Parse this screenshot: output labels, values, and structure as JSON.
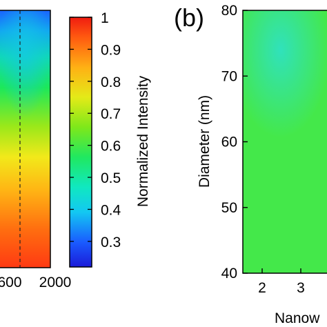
{
  "chart_data": [
    {
      "type": "heatmap",
      "panel": "",
      "xlabel": "",
      "ylabel": "",
      "x_tick_labels": [
        "600",
        "2000"
      ],
      "colormap": "jet",
      "marker_line": "dashed vertical",
      "notes": "left panel partially cropped"
    },
    {
      "type": "colorbar",
      "label": "Normalized Intensity",
      "range": [
        0.22,
        1.0
      ],
      "ticks": [
        0.3,
        0.4,
        0.5,
        0.6,
        0.7,
        0.8,
        0.9,
        1
      ],
      "tick_labels": [
        "0.3",
        "0.4",
        "0.5",
        "0.6",
        "0.7",
        "0.8",
        "0.9",
        "1"
      ],
      "colormap": "jet"
    },
    {
      "type": "heatmap",
      "panel": "(b)",
      "xlabel": "Nanow",
      "ylabel": "Diameter (nm)",
      "ylim": [
        40,
        80
      ],
      "y_ticks": [
        40,
        50,
        60,
        70,
        80
      ],
      "y_tick_labels": [
        "40",
        "50",
        "60",
        "70",
        "80"
      ],
      "x_ticks": [
        2,
        3
      ],
      "x_tick_labels": [
        "2",
        "3"
      ],
      "value_range": [
        0.45,
        0.62
      ],
      "colormap": "jet"
    }
  ]
}
